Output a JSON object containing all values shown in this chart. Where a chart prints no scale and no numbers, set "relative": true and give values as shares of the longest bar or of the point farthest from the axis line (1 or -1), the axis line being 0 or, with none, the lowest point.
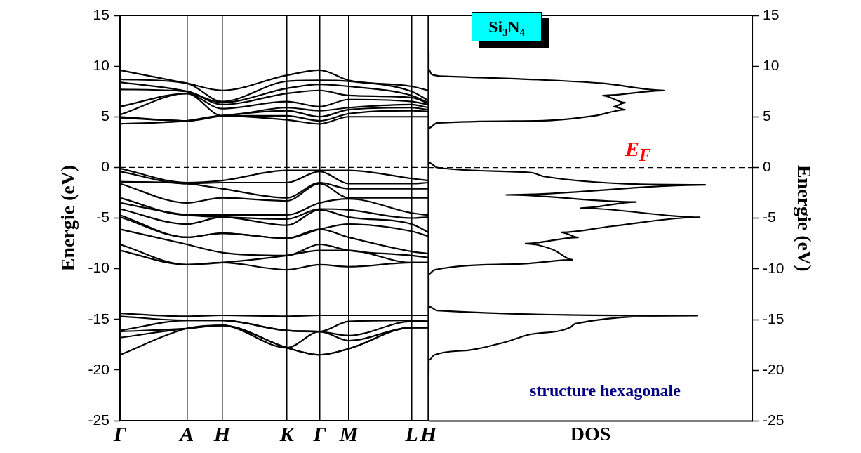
{
  "chart_data": [
    {
      "type": "line",
      "ylabel": "Energie (eV)",
      "categories": [
        "Γ",
        "A",
        "H",
        "K",
        "Γ",
        "M",
        "L",
        "H"
      ],
      "ylim": [
        -25,
        15
      ],
      "yticks": [
        -25,
        -20,
        -15,
        -10,
        -5,
        0,
        5,
        10,
        15
      ],
      "grid": "x",
      "ref_lines": [
        {
          "axis": "y",
          "value": 0,
          "line_style": "dashed"
        }
      ],
      "series": [
        {
          "color": "#000000",
          "values": [
            9.6,
            8.3,
            7.6,
            9.1,
            9.6,
            8.6,
            8.0,
            7.6
          ]
        },
        {
          "color": "#000000",
          "values": [
            8.7,
            8.3,
            6.5,
            8.5,
            8.6,
            8.5,
            7.5,
            6.6
          ]
        },
        {
          "color": "#000000",
          "values": [
            8.4,
            7.5,
            6.4,
            7.8,
            8.2,
            8.0,
            7.1,
            6.4
          ]
        },
        {
          "color": "#000000",
          "values": [
            7.7,
            7.5,
            6.2,
            7.3,
            7.6,
            7.1,
            6.9,
            6.3
          ]
        },
        {
          "color": "#000000",
          "values": [
            6.0,
            7.3,
            5.8,
            6.5,
            6.0,
            6.7,
            6.5,
            6.2
          ]
        },
        {
          "color": "#000000",
          "values": [
            5.2,
            7.3,
            5.1,
            5.9,
            5.6,
            5.9,
            6.2,
            5.9
          ]
        },
        {
          "color": "#000000",
          "values": [
            5.0,
            4.6,
            5.1,
            5.6,
            5.0,
            5.7,
            5.9,
            5.7
          ]
        },
        {
          "color": "#000000",
          "values": [
            4.9,
            4.6,
            5.1,
            5.1,
            4.6,
            5.3,
            5.6,
            5.5
          ]
        },
        {
          "color": "#000000",
          "values": [
            4.3,
            4.6,
            5.1,
            4.7,
            4.3,
            5.0,
            5.0,
            5.0
          ]
        },
        {
          "color": "#000000",
          "values": [
            -0.1,
            -1.5,
            -1.3,
            -0.3,
            -0.3,
            -0.3,
            -1.1,
            -1.3
          ]
        },
        {
          "color": "#000000",
          "values": [
            -0.4,
            -1.6,
            -1.5,
            -1.5,
            -0.4,
            -1.6,
            -1.6,
            -1.5
          ]
        },
        {
          "color": "#000000",
          "values": [
            -1.4,
            -1.6,
            -2.1,
            -3.0,
            -1.5,
            -2.1,
            -2.1,
            -2.1
          ]
        },
        {
          "color": "#000000",
          "values": [
            -1.6,
            -3.5,
            -3.0,
            -3.3,
            -1.6,
            -3.0,
            -3.0,
            -3.0
          ]
        },
        {
          "color": "#000000",
          "values": [
            -3.0,
            -4.7,
            -4.7,
            -4.7,
            -3.5,
            -3.1,
            -4.5,
            -4.7
          ]
        },
        {
          "color": "#000000",
          "values": [
            -3.5,
            -4.7,
            -4.9,
            -5.1,
            -4.1,
            -4.2,
            -5.0,
            -4.9
          ]
        },
        {
          "color": "#000000",
          "values": [
            -4.1,
            -5.6,
            -4.9,
            -5.7,
            -4.2,
            -4.9,
            -5.6,
            -6.4
          ]
        },
        {
          "color": "#000000",
          "values": [
            -4.7,
            -6.9,
            -6.5,
            -7.0,
            -6.1,
            -5.6,
            -6.3,
            -6.8
          ]
        },
        {
          "color": "#000000",
          "values": [
            -4.9,
            -6.9,
            -6.5,
            -7.0,
            -6.1,
            -6.9,
            -8.3,
            -8.5
          ]
        },
        {
          "color": "#000000",
          "values": [
            -6.1,
            -7.6,
            -8.4,
            -8.7,
            -7.6,
            -8.2,
            -8.7,
            -8.9
          ]
        },
        {
          "color": "#000000",
          "values": [
            -7.6,
            -9.6,
            -9.4,
            -8.7,
            -8.2,
            -8.2,
            -9.4,
            -9.4
          ]
        },
        {
          "color": "#000000",
          "values": [
            -8.2,
            -9.6,
            -9.4,
            -10.1,
            -9.6,
            -9.8,
            -9.4,
            -9.4
          ]
        },
        {
          "color": "#000000",
          "values": [
            -14.4,
            -14.7,
            -14.6,
            -14.7,
            -14.6,
            -14.6,
            -14.6,
            -14.6
          ]
        },
        {
          "color": "#000000",
          "values": [
            -14.7,
            -15.1,
            -15.1,
            -16.1,
            -16.2,
            -15.2,
            -15.1,
            -15.2
          ]
        },
        {
          "color": "#000000",
          "values": [
            -16.1,
            -15.1,
            -15.1,
            -16.1,
            -16.2,
            -16.6,
            -15.2,
            -15.2
          ]
        },
        {
          "color": "#000000",
          "values": [
            -16.2,
            -15.9,
            -15.6,
            -17.8,
            -16.2,
            -17.1,
            -15.8,
            -15.8
          ]
        },
        {
          "color": "#000000",
          "values": [
            -16.8,
            -15.9,
            -15.6,
            -17.8,
            -18.5,
            -17.9,
            -15.8,
            -15.8
          ]
        },
        {
          "color": "#000000",
          "values": [
            -18.5,
            -15.9,
            -15.6,
            -17.8,
            -18.5,
            -17.9,
            -15.8,
            -15.8
          ]
        }
      ]
    },
    {
      "type": "line",
      "title": "Si₃N₄",
      "xlabel": "DOS",
      "ylabel": "Energie (eV)",
      "orientation": "horizontal",
      "relative": true,
      "ylim": [
        -25,
        15
      ],
      "yticks": [
        -25,
        -20,
        -15,
        -10,
        -5,
        0,
        5,
        10,
        15
      ],
      "tick_labels": "y",
      "ref_lines": [
        {
          "axis": "y",
          "value": 0,
          "line_style": "dashed"
        }
      ],
      "annotations": [
        "E$_{F}$",
        "structure hexagonale"
      ],
      "series": [
        {
          "color": "#000000",
          "values": [
            0,
            0,
            0.01,
            0.06,
            0.63,
            0.85,
            0.63,
            0.71,
            0.67,
            0.71,
            0.6,
            0.39,
            0.03,
            0,
            0,
            0.03,
            0.37,
            0.42,
            1.0,
            0.28,
            0.75,
            0.55,
            0.98,
            0.66,
            0.48,
            0.54,
            0.35,
            0.45,
            0.52,
            0.34,
            0.02,
            0,
            0,
            0.03,
            0.97,
            0.53,
            0.51,
            0.36,
            0.28,
            0.15,
            0.02,
            0,
            0
          ],
          "x": [
            11.5,
            9.7,
            9.2,
            9.0,
            8.3,
            7.6,
            7.1,
            6.4,
            6.0,
            5.7,
            5.1,
            4.6,
            4.4,
            3.9,
            0.5,
            0.0,
            -0.5,
            -0.9,
            -1.7,
            -2.7,
            -3.4,
            -4.0,
            -4.9,
            -5.8,
            -6.4,
            -6.9,
            -7.5,
            -8.1,
            -9.1,
            -9.5,
            -10.1,
            -10.5,
            -13.7,
            -14.1,
            -14.6,
            -15.4,
            -15.8,
            -16.5,
            -17.2,
            -18.0,
            -18.5,
            -19.0,
            -20.4
          ]
        }
      ]
    }
  ]
}
